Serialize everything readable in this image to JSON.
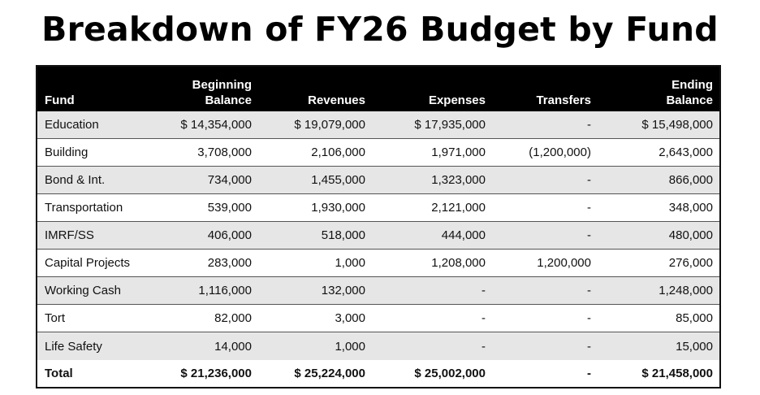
{
  "title": "Breakdown of FY26 Budget by Fund",
  "headers": {
    "fund": "Fund",
    "beginning_1": "Beginning",
    "beginning_2": "Balance",
    "revenues": "Revenues",
    "expenses": "Expenses",
    "transfers": "Transfers",
    "ending_1": "Ending",
    "ending_2": "Balance"
  },
  "rows": [
    {
      "fund": "Education",
      "beginning": "$ 14,354,000",
      "revenues": "$ 19,079,000",
      "expenses": "$ 17,935,000",
      "transfers": "-",
      "ending": "$ 15,498,000"
    },
    {
      "fund": "Building",
      "beginning": "3,708,000",
      "revenues": "2,106,000",
      "expenses": "1,971,000",
      "transfers": "(1,200,000)",
      "ending": "2,643,000"
    },
    {
      "fund": "Bond & Int.",
      "beginning": "734,000",
      "revenues": "1,455,000",
      "expenses": "1,323,000",
      "transfers": "-",
      "ending": "866,000"
    },
    {
      "fund": "Transportation",
      "beginning": "539,000",
      "revenues": "1,930,000",
      "expenses": "2,121,000",
      "transfers": "-",
      "ending": "348,000"
    },
    {
      "fund": "IMRF/SS",
      "beginning": "406,000",
      "revenues": "518,000",
      "expenses": "444,000",
      "transfers": "-",
      "ending": "480,000"
    },
    {
      "fund": "Capital Projects",
      "beginning": "283,000",
      "revenues": "1,000",
      "expenses": "1,208,000",
      "transfers": "1,200,000",
      "ending": "276,000"
    },
    {
      "fund": "Working Cash",
      "beginning": "1,116,000",
      "revenues": "132,000",
      "expenses": "-",
      "transfers": "-",
      "ending": "1,248,000"
    },
    {
      "fund": "Tort",
      "beginning": "82,000",
      "revenues": "3,000",
      "expenses": "-",
      "transfers": "-",
      "ending": "85,000"
    },
    {
      "fund": "Life Safety",
      "beginning": "14,000",
      "revenues": "1,000",
      "expenses": "-",
      "transfers": "-",
      "ending": "15,000"
    }
  ],
  "total": {
    "fund": "Total",
    "beginning": "$ 21,236,000",
    "revenues": "$ 25,224,000",
    "expenses": "$ 25,002,000",
    "transfers": "-",
    "ending": "$ 21,458,000"
  },
  "colors": {
    "header_bg": "#000000",
    "stripe": "#e6e6e6"
  }
}
